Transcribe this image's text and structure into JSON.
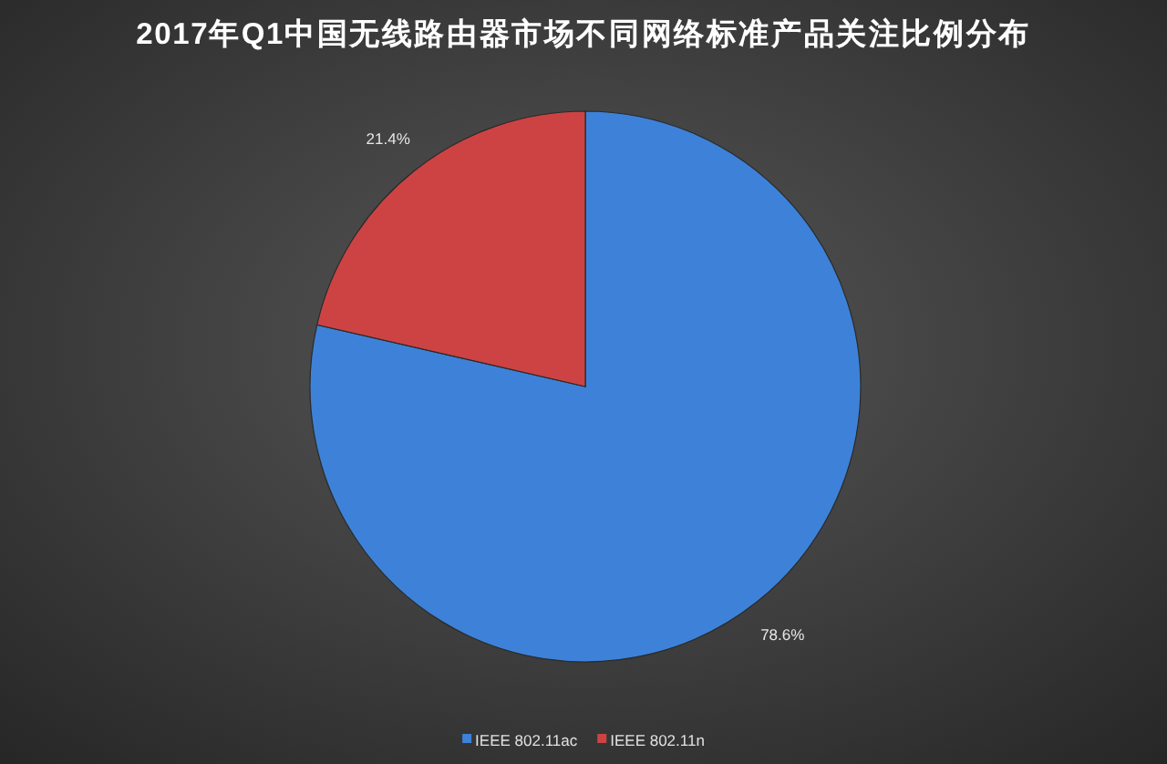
{
  "chart_data": {
    "type": "pie",
    "title": "2017年Q1中国无线路由器市场不同网络标准产品关注比例分布",
    "categories": [
      "IEEE 802.11ac",
      "IEEE 802.11n"
    ],
    "values": [
      78.6,
      21.4
    ],
    "colors": [
      "#3d82d8",
      "#cd4343"
    ],
    "value_labels": [
      "78.6%",
      "21.4%"
    ],
    "legend": "bottom"
  }
}
